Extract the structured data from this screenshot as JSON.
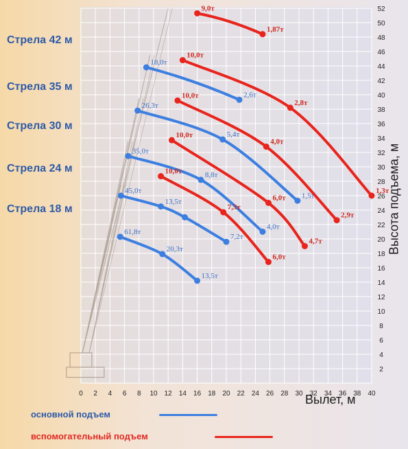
{
  "boom_labels": [
    "Стрела 42 м",
    "Стрела 35 м",
    "Стрела 30 м",
    "Стрела 24 м",
    "Стрела 18 м"
  ],
  "axis": {
    "xlabel": "Вылет, м",
    "ylabel": "Высота подъема, м"
  },
  "legend": {
    "main": "основной подъем",
    "aux": "вспомогательный подъем"
  },
  "colors": {
    "main": "#3c7fe0",
    "aux": "#e8241c",
    "main_text": "#3a6fc4",
    "aux_text": "#cf2a20",
    "grid": "#ffffff",
    "tick_text": "#222222"
  },
  "chart_data": {
    "type": "line",
    "xlim": [
      0,
      40
    ],
    "ylim": [
      0,
      52
    ],
    "xticks": [
      0,
      2,
      4,
      6,
      8,
      10,
      12,
      14,
      16,
      18,
      20,
      22,
      24,
      26,
      28,
      30,
      32,
      34,
      36,
      38,
      40
    ],
    "yticks": [
      2,
      4,
      6,
      8,
      10,
      12,
      14,
      16,
      18,
      20,
      22,
      24,
      26,
      28,
      30,
      32,
      34,
      36,
      38,
      40,
      42,
      44,
      46,
      48,
      50,
      52
    ],
    "grid": true,
    "series": [
      {
        "kind": "main",
        "boom": "Стрела 18 м",
        "points": [
          [
            5.4,
            20.3
          ],
          [
            11.2,
            17.9
          ],
          [
            16.0,
            14.2
          ]
        ],
        "labels": [
          "61,8т",
          "20,3т",
          "13,5т"
        ]
      },
      {
        "kind": "main",
        "boom": "Стрела 24 м",
        "points": [
          [
            5.5,
            26.0
          ],
          [
            11.0,
            24.5
          ],
          [
            14.3,
            23.0
          ],
          [
            20.0,
            19.6
          ]
        ],
        "labels": [
          "45,0т",
          "13,5т",
          "",
          "7,2т"
        ]
      },
      {
        "kind": "main",
        "boom": "Стрела 30 м",
        "points": [
          [
            6.5,
            31.5
          ],
          [
            16.5,
            28.2
          ],
          [
            25.0,
            21.0
          ]
        ],
        "labels": [
          "35,0т",
          "8,8т",
          "4,0т"
        ]
      },
      {
        "kind": "main",
        "boom": "Стрела 35 м",
        "points": [
          [
            7.8,
            37.8
          ],
          [
            19.5,
            33.8
          ],
          [
            29.8,
            25.3
          ]
        ],
        "labels": [
          "26,3т",
          "5,4т",
          "1,5т"
        ]
      },
      {
        "kind": "main",
        "boom": "Стрела 42 м",
        "points": [
          [
            9.0,
            43.8
          ],
          [
            21.8,
            39.3
          ]
        ],
        "labels": [
          "18,0т",
          "2,6т"
        ]
      },
      {
        "kind": "aux",
        "boom": "Стрела 18 м",
        "points": [
          [
            11.0,
            28.7
          ],
          [
            19.6,
            23.7
          ],
          [
            25.8,
            16.8
          ]
        ],
        "labels": [
          "10,0т",
          "7,3т",
          "6,0т"
        ]
      },
      {
        "kind": "aux",
        "boom": "Стрела 24 м",
        "points": [
          [
            12.5,
            33.7
          ],
          [
            25.8,
            25.0
          ],
          [
            30.8,
            19.0
          ]
        ],
        "labels": [
          "10,0т",
          "6,0т",
          "4,7т"
        ]
      },
      {
        "kind": "aux",
        "boom": "Стрела 30 м",
        "points": [
          [
            13.3,
            39.2
          ],
          [
            25.5,
            32.8
          ],
          [
            35.2,
            22.6
          ]
        ],
        "labels": [
          "10,0т",
          "4,0т",
          "2,9т"
        ]
      },
      {
        "kind": "aux",
        "boom": "Стрела 35 м",
        "points": [
          [
            14.0,
            44.8
          ],
          [
            28.8,
            38.2
          ],
          [
            40.0,
            26.0
          ]
        ],
        "labels": [
          "10,0т",
          "2,8т",
          "1,3т"
        ]
      },
      {
        "kind": "aux",
        "boom": "Стрела 42 м",
        "points": [
          [
            16.0,
            51.3
          ],
          [
            25.0,
            48.4
          ]
        ],
        "labels": [
          "9,0т",
          "1,87т"
        ]
      }
    ]
  }
}
